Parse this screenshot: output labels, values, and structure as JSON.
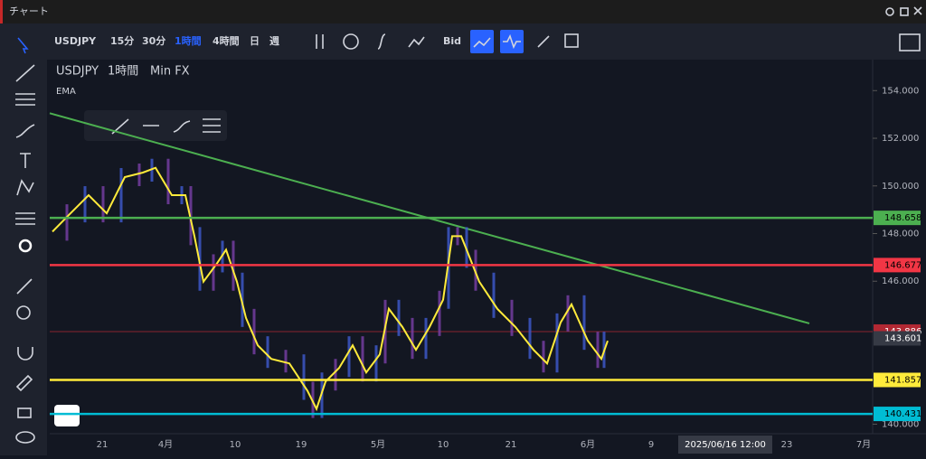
{
  "window": {
    "title": "チャート"
  },
  "toolbar": {
    "symbol": "USDJPY",
    "intervals": [
      "15分",
      "30分",
      "1時間",
      "4時間",
      "日",
      "週"
    ],
    "active_interval": 2,
    "price_side": "Bid"
  },
  "legend": {
    "symbol": "USDJPY",
    "interval": "1時間",
    "source": "Min FX",
    "indicator": "EMA"
  },
  "price_axis": {
    "ylim": [
      139.6,
      155.3
    ],
    "ticks": [
      {
        "value": 154,
        "label": "154.000"
      },
      {
        "value": 152,
        "label": "152.000"
      },
      {
        "value": 150,
        "label": "150.000"
      },
      {
        "value": 148,
        "label": "148.000"
      },
      {
        "value": 146,
        "label": "146.000"
      },
      {
        "value": 140,
        "label": "140.000"
      }
    ]
  },
  "levels": [
    {
      "value": 148.658,
      "label": "148.658",
      "color": "#4caf50"
    },
    {
      "value": 146.677,
      "label": "146.677",
      "color": "#f23645"
    },
    {
      "value": 141.857,
      "label": "141.857",
      "color": "#ffeb3b"
    },
    {
      "value": 140.431,
      "label": "140.431",
      "color": "#00bcd4"
    }
  ],
  "bid": {
    "value": 143.886,
    "label": "143.886",
    "color": "#b22833"
  },
  "current": {
    "value": 143.601,
    "label": "143.601"
  },
  "trendline": {
    "start": 153.05,
    "end": 144.23,
    "color": "#4caf50"
  },
  "ema": {
    "color": "#ffeb3b",
    "values": [
      148.08,
      148.85,
      149.61,
      148.85,
      150.37,
      150.56,
      150.76,
      149.61,
      149.61,
      147.89,
      145.98,
      146.75,
      147.32,
      145.98,
      144.46,
      143.31,
      142.74,
      142.55,
      141.4,
      140.64,
      141.79,
      142.36,
      143.31,
      142.17,
      142.93,
      144.84,
      144.08,
      143.12,
      144.08,
      145.22,
      147.89,
      147.89,
      146.94,
      145.98,
      144.84,
      144.08,
      143.12,
      142.55,
      144.27,
      145.03,
      143.5,
      142.74,
      143.5
    ]
  },
  "time_axis": {
    "labels": [
      "21",
      "4月",
      "10",
      "19",
      "5月",
      "10",
      "21",
      "6月",
      "9",
      "23",
      "7月"
    ],
    "cursor": "2025/06/16 12:00"
  }
}
